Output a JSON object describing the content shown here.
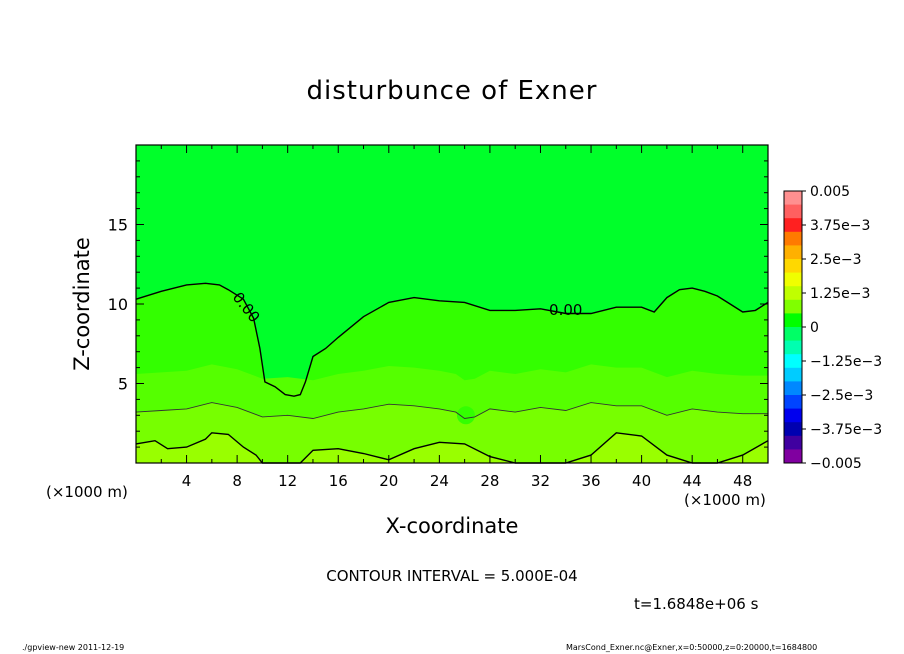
{
  "chart_data": {
    "type": "contour",
    "title": "disturbunce of Exner",
    "xlabel": "X-coordinate",
    "ylabel": "Z-coordinate",
    "x_unit_left": "(×1000 m)",
    "x_unit_right": "(×1000 m)",
    "xlim": [
      0,
      50
    ],
    "ylim": [
      0,
      20
    ],
    "xticks": [
      4,
      8,
      12,
      16,
      20,
      24,
      28,
      32,
      36,
      40,
      44,
      48
    ],
    "xtick_labels": [
      "4",
      "8",
      "12",
      "16",
      "20",
      "24",
      "28",
      "32",
      "36",
      "40",
      "44",
      "48"
    ],
    "yticks": [
      5,
      10,
      15
    ],
    "ytick_labels": [
      "5",
      "10",
      "15"
    ],
    "contour_interval_text": "CONTOUR INTERVAL = 5.000E-04",
    "time_text": "t=1.6848e+06 s",
    "contour_labels": [
      "0.00",
      "0.00"
    ],
    "colorbar": {
      "labels": [
        "0.005",
        "3.75e-3",
        "2.5e-3",
        "1.25e-3",
        "0",
        "-1.25e-3",
        "-2.5e-3",
        "-3.75e-3",
        "-0.005"
      ],
      "colors": [
        "#ff9090",
        "#ff6060",
        "#ff2020",
        "#ff7a00",
        "#ffb000",
        "#ffd800",
        "#f0ff00",
        "#c0ff00",
        "#80ff00",
        "#00ff00",
        "#00ff66",
        "#00ffb0",
        "#00ffff",
        "#00ccff",
        "#0088ff",
        "#0044ff",
        "#0000ee",
        "#0000b0",
        "#4000a0",
        "#8000a0"
      ]
    },
    "zero_contour": {
      "x": [
        0,
        2,
        4,
        5.5,
        6.6,
        7.3,
        8.5,
        9.3,
        9.8,
        10.2,
        11,
        11.8,
        12.5,
        13,
        13.4,
        14,
        15,
        16,
        18,
        20,
        22,
        24,
        26,
        28,
        30,
        32,
        34,
        36,
        38,
        40,
        41,
        42,
        43,
        44,
        45,
        46,
        47,
        48,
        49,
        50
      ],
      "z": [
        10.3,
        10.8,
        11.2,
        11.3,
        11.2,
        10.9,
        10.3,
        9.1,
        7.2,
        5.1,
        4.8,
        4.3,
        4.2,
        4.3,
        5.1,
        6.7,
        7.2,
        7.9,
        9.2,
        10.1,
        10.4,
        10.2,
        10.1,
        9.6,
        9.6,
        9.7,
        9.4,
        9.4,
        9.8,
        9.8,
        9.5,
        10.4,
        10.9,
        11.0,
        10.8,
        10.5,
        10.0,
        9.5,
        9.6,
        10.1
      ]
    },
    "lower_contour": {
      "x": [
        0,
        1.5,
        2.5,
        4,
        5.5,
        6,
        7.3,
        8.5,
        9.5,
        10,
        11,
        13,
        14,
        16,
        18,
        20,
        22,
        24,
        26,
        28,
        30,
        32,
        34,
        36,
        38,
        40,
        42,
        44,
        46,
        48,
        50
      ],
      "z": [
        1.2,
        1.4,
        0.9,
        1.0,
        1.5,
        1.9,
        1.8,
        1.0,
        0.5,
        0,
        0,
        0,
        0.8,
        0.9,
        0.6,
        0.2,
        0.9,
        1.3,
        1.2,
        0.4,
        0,
        0,
        0,
        0.5,
        1.9,
        1.7,
        0.5,
        0,
        0,
        0.5,
        1.4
      ]
    },
    "mid_contour": {
      "x": [
        0,
        2,
        4,
        6,
        8,
        10,
        12,
        14,
        16,
        18,
        20,
        22,
        24,
        25.3,
        26,
        26.8,
        28,
        30,
        32,
        34,
        36,
        38,
        40,
        42,
        44,
        46,
        48,
        50
      ],
      "z": [
        3.2,
        3.3,
        3.4,
        3.8,
        3.5,
        2.9,
        3.0,
        2.8,
        3.2,
        3.4,
        3.7,
        3.6,
        3.4,
        3.2,
        2.8,
        2.9,
        3.4,
        3.2,
        3.5,
        3.3,
        3.8,
        3.6,
        3.6,
        3.0,
        3.4,
        3.2,
        3.1,
        3.1
      ]
    }
  },
  "footer": {
    "left": "./gpview-new  2011-12-19",
    "right": "MarsCond_Exner.nc@Exner,x=0:50000,z=0:20000,t=1684800"
  }
}
